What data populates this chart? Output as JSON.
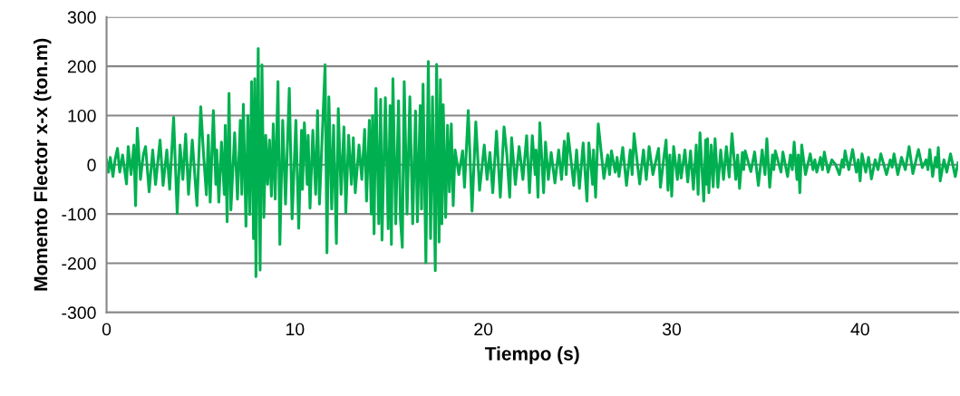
{
  "chart_data": {
    "type": "line",
    "xlabel": "Tiempo (s)",
    "ylabel": "Momento Flector x-x (ton.m)",
    "xlim": [
      0,
      45.2
    ],
    "xticks": [
      0,
      10,
      20,
      30,
      40
    ],
    "ylim": [
      -300,
      300
    ],
    "yticks": [
      -300,
      -200,
      -100,
      0,
      100,
      200,
      300
    ],
    "grid": "y",
    "series": [
      {
        "color": "#00b050",
        "x": [
          0,
          0.1,
          0.2,
          0.34,
          0.45,
          0.58,
          0.7,
          0.85,
          1.06,
          1.15,
          1.3,
          1.45,
          1.54,
          1.63,
          1.8,
          1.95,
          2.07,
          2.26,
          2.45,
          2.6,
          2.84,
          3.0,
          3.2,
          3.35,
          3.56,
          3.75,
          3.9,
          4.05,
          4.2,
          4.35,
          4.55,
          4.8,
          5.0,
          5.15,
          5.3,
          5.4,
          5.5,
          5.67,
          5.8,
          5.85,
          5.96,
          6.1,
          6.25,
          6.3,
          6.4,
          6.5,
          6.6,
          6.8,
          6.95,
          7.1,
          7.18,
          7.26,
          7.4,
          7.5,
          7.6,
          7.7,
          7.8,
          7.87,
          7.93,
          8.05,
          8.15,
          8.25,
          8.35,
          8.45,
          8.55,
          8.65,
          8.75,
          8.85,
          8.95,
          9.1,
          9.2,
          9.35,
          9.5,
          9.7,
          9.85,
          10.05,
          10.2,
          10.35,
          10.4,
          10.5,
          10.65,
          10.7,
          10.8,
          10.95,
          11.1,
          11.2,
          11.3,
          11.45,
          11.6,
          11.7,
          11.8,
          11.95,
          12.05,
          12.2,
          12.3,
          12.45,
          12.6,
          12.7,
          12.85,
          13.0,
          13.1,
          13.2,
          13.4,
          13.55,
          13.7,
          13.8,
          13.95,
          14.05,
          14.12,
          14.2,
          14.3,
          14.45,
          14.55,
          14.62,
          14.8,
          14.95,
          15.05,
          15.12,
          15.2,
          15.35,
          15.5,
          15.6,
          15.7,
          15.8,
          15.95,
          16.1,
          16.25,
          16.4,
          16.5,
          16.65,
          16.72,
          16.8,
          16.95,
          17.08,
          17.2,
          17.3,
          17.45,
          17.52,
          17.65,
          17.72,
          17.8,
          17.87,
          18.0,
          18.1,
          18.2,
          18.3,
          18.4,
          18.5,
          18.7,
          18.9,
          19.0,
          19.2,
          19.4,
          19.6,
          19.8,
          20.05,
          20.2,
          20.35,
          20.5,
          20.7,
          20.9,
          21.1,
          21.25,
          21.4,
          21.5,
          21.7,
          21.9,
          22.1,
          22.3,
          22.45,
          22.6,
          22.75,
          22.8,
          22.9,
          23.0,
          23.2,
          23.3,
          23.45,
          23.6,
          23.8,
          24.0,
          24.15,
          24.3,
          24.4,
          24.5,
          24.8,
          24.95,
          25.1,
          25.3,
          25.5,
          25.6,
          25.8,
          25.85,
          25.96,
          26.1,
          26.4,
          26.6,
          26.7,
          26.8,
          27.0,
          27.1,
          27.2,
          27.4,
          27.6,
          27.8,
          27.9,
          28.0,
          28.3,
          28.5,
          28.65,
          28.8,
          29.0,
          29.3,
          29.4,
          29.6,
          29.7,
          29.8,
          29.9,
          30.0,
          30.1,
          30.3,
          30.4,
          30.5,
          30.7,
          30.85,
          31.0,
          31.15,
          31.3,
          31.4,
          31.5,
          31.7,
          31.8,
          31.85,
          31.9,
          31.97,
          32.1,
          32.2,
          32.3,
          32.45,
          32.6,
          32.75,
          32.9,
          33.05,
          33.2,
          33.4,
          33.5,
          33.6,
          33.75,
          33.82,
          33.9,
          34.2,
          34.4,
          34.6,
          34.8,
          34.95,
          35.05,
          35.2,
          35.35,
          35.42,
          35.5,
          35.8,
          35.9,
          36.15,
          36.3,
          36.4,
          36.5,
          36.65,
          36.72,
          36.8,
          36.9,
          37.1,
          37.35,
          37.5,
          37.6,
          37.7,
          37.9,
          38.0,
          38.1,
          38.3,
          38.5,
          38.7,
          38.9,
          39.05,
          39.12,
          39.2,
          39.4,
          39.6,
          39.8,
          39.9,
          40.0,
          40.1,
          40.3,
          40.45,
          40.6,
          40.8,
          40.95,
          41.1,
          41.4,
          41.6,
          41.7,
          41.8,
          42.0,
          42.2,
          42.4,
          42.6,
          42.8,
          43.1,
          43.3,
          43.5,
          43.6,
          43.7,
          43.85,
          44.0,
          44.08,
          44.15,
          44.25,
          44.45,
          44.6,
          44.8,
          45.05,
          45.2
        ],
        "values": [
          10,
          -15,
          15,
          -24,
          10,
          33,
          -15,
          20,
          -39,
          37,
          -20,
          40,
          -83,
          74,
          -30,
          20,
          37,
          -55,
          30,
          -40,
          50,
          -42,
          30,
          -50,
          96,
          -99,
          40,
          -30,
          62,
          -60,
          50,
          -83,
          118,
          20,
          -61,
          60,
          -76,
          110,
          -40,
          30,
          -76,
          46,
          -60,
          80,
          -116,
          145,
          -92,
          65,
          -70,
          90,
          -60,
          123,
          -125,
          100,
          -101,
          169,
          -150,
          175,
          -227,
          236,
          -214,
          203,
          -107,
          60,
          -40,
          50,
          -64,
          83,
          -70,
          169,
          -162,
          90,
          -80,
          155,
          -110,
          90,
          -129,
          70,
          -50,
          85,
          -40,
          60,
          -88,
          70,
          -60,
          110,
          -80,
          60,
          203,
          -179,
          138,
          -90,
          80,
          -160,
          114,
          -60,
          77,
          -98,
          60,
          -40,
          55,
          -57,
          40,
          -30,
          72,
          -74,
          90,
          -100,
          100,
          -140,
          155,
          -120,
          133,
          -153,
          136,
          -130,
          120,
          -162,
          175,
          -120,
          130,
          -110,
          -168,
          169,
          -100,
          138,
          -120,
          109,
          -116,
          120,
          -90,
          164,
          -199,
          210,
          -150,
          138,
          -215,
          204,
          -157,
          173,
          -120,
          122,
          -107,
          80,
          -55,
          83,
          -83,
          30,
          -20,
          28,
          -46,
          110,
          -94,
          87,
          -52,
          40,
          -30,
          25,
          -57,
          68,
          -66,
          77,
          20,
          -66,
          55,
          -40,
          37,
          -30,
          59,
          -57,
          59,
          -20,
          30,
          -66,
          85,
          -57,
          46,
          -30,
          25,
          -37,
          30,
          -30,
          48,
          -20,
          63,
          -42,
          30,
          -48,
          44,
          -74,
          44,
          -40,
          30,
          -66,
          83,
          -28,
          20,
          -20,
          28,
          -15,
          15,
          -24,
          35,
          -42,
          30,
          -20,
          63,
          -39,
          30,
          -30,
          37,
          -20,
          33,
          -46,
          20,
          50,
          -52,
          20,
          -64,
          37,
          -30,
          20,
          -27,
          30,
          -35,
          28,
          -50,
          40,
          -60,
          65,
          -74,
          50,
          -40,
          53,
          -57,
          40,
          -45,
          53,
          -46,
          30,
          -30,
          37,
          -25,
          63,
          -30,
          20,
          -48,
          25,
          -10,
          28,
          -14,
          26,
          -42,
          30,
          -20,
          53,
          -46,
          20,
          -10,
          28,
          -15,
          26,
          -24,
          20,
          -10,
          46,
          -30,
          20,
          -57,
          40,
          -20,
          22,
          -10,
          10,
          -15,
          15,
          -10,
          26,
          -15,
          10,
          0,
          -20,
          10,
          -5,
          28,
          -10,
          31,
          -15,
          10,
          -33,
          22,
          -15,
          15,
          -29,
          10,
          -10,
          22,
          -20,
          10,
          -5,
          22,
          -20,
          15,
          -10,
          37,
          -18,
          31,
          -6,
          10,
          -10,
          31,
          -24,
          15,
          -5,
          35,
          -33,
          10,
          -15,
          22,
          -24,
          4
        ]
      }
    ]
  }
}
